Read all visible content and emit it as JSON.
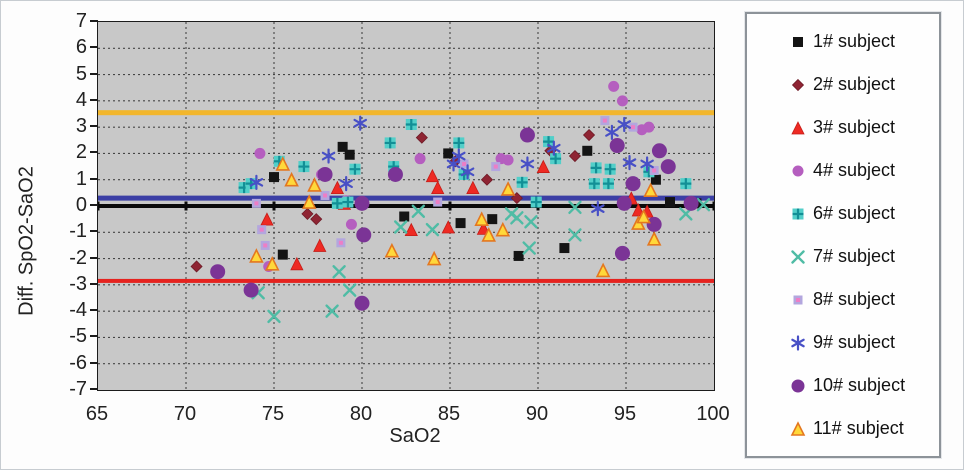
{
  "figure": {
    "background": "#fdfdfd",
    "plot_background": "#c8c8c8",
    "grid_color": "#454545",
    "border_color": "#1c1c1c"
  },
  "chart_data": {
    "type": "scatter",
    "title": "",
    "xlabel": "SaO2",
    "ylabel": "Diff. SpO2-SaO2",
    "xlim": [
      65,
      100
    ],
    "ylim": [
      -7,
      7
    ],
    "x_ticks": [
      65,
      70,
      75,
      80,
      85,
      90,
      95,
      100
    ],
    "y_ticks": [
      7,
      6,
      5,
      4,
      3,
      2,
      1,
      0,
      -1,
      -2,
      -3,
      -4,
      -5,
      -6,
      -7
    ],
    "grid": true,
    "legend_position": "right",
    "reference_lines": [
      {
        "name": "upper-limit-line",
        "y": 3.55,
        "color": "#F2B62C",
        "width": 5
      },
      {
        "name": "lower-limit-line",
        "y": -2.85,
        "color": "#E5231F",
        "width": 4
      },
      {
        "name": "zero-axis-line",
        "y": 0,
        "color": "#0a0a0a",
        "width": 4
      },
      {
        "name": "mean-bias-line",
        "y": 0.3,
        "color": "#3B3FA5",
        "width": 5
      }
    ],
    "series": [
      {
        "name": "1# subject",
        "marker": "square",
        "size": 10,
        "color": "#141414",
        "color2": "#141414",
        "points": [
          [
            75.0,
            1.1
          ],
          [
            75.5,
            -1.85
          ],
          [
            78.9,
            2.25
          ],
          [
            79.3,
            1.95
          ],
          [
            82.4,
            -0.4
          ],
          [
            84.9,
            2.0
          ],
          [
            85.6,
            -0.65
          ],
          [
            87.4,
            -0.5
          ],
          [
            88.9,
            -1.9
          ],
          [
            91.5,
            -1.6
          ],
          [
            92.8,
            2.1
          ],
          [
            96.7,
            1.0
          ],
          [
            97.5,
            0.15
          ],
          [
            99.0,
            0.1
          ]
        ]
      },
      {
        "name": "2# subject",
        "marker": "diamond",
        "size": 11,
        "color": "#8F2433",
        "color2": "#6e1b27",
        "points": [
          [
            70.6,
            -2.3
          ],
          [
            76.9,
            -0.3
          ],
          [
            77.4,
            -0.5
          ],
          [
            83.4,
            2.6
          ],
          [
            85.3,
            1.7
          ],
          [
            87.1,
            1.0
          ],
          [
            88.8,
            0.3
          ],
          [
            90.7,
            2.1
          ],
          [
            92.1,
            1.9
          ],
          [
            92.9,
            2.7
          ]
        ]
      },
      {
        "name": "3# subject",
        "marker": "triangle",
        "size": 12,
        "color": "#EE2A23",
        "color2": "#c41d18",
        "points": [
          [
            74.6,
            -0.5
          ],
          [
            76.3,
            -2.2
          ],
          [
            77.6,
            -1.5
          ],
          [
            78.6,
            0.7
          ],
          [
            79.0,
            0.1
          ],
          [
            82.8,
            -0.9
          ],
          [
            84.0,
            1.15
          ],
          [
            84.3,
            0.7
          ],
          [
            84.9,
            -0.8
          ],
          [
            86.3,
            0.7
          ],
          [
            86.9,
            -0.85
          ],
          [
            90.3,
            1.5
          ],
          [
            95.3,
            0.3
          ],
          [
            95.7,
            -0.15
          ],
          [
            96.2,
            -0.2
          ]
        ]
      },
      {
        "name": "4# subject",
        "marker": "circle",
        "size": 11,
        "color": "#B55EBF",
        "color2": "#9a4aa5",
        "points": [
          [
            74.2,
            2.0
          ],
          [
            74.7,
            -2.3
          ],
          [
            77.7,
            1.2
          ],
          [
            79.1,
            0.2
          ],
          [
            79.4,
            -0.7
          ],
          [
            83.3,
            1.8
          ],
          [
            87.9,
            1.8
          ],
          [
            88.3,
            1.75
          ],
          [
            94.3,
            4.55
          ],
          [
            94.8,
            4.0
          ],
          [
            95.9,
            2.9
          ],
          [
            96.3,
            3.0
          ]
        ]
      },
      {
        "name": "6# subject",
        "marker": "square-plus",
        "size": 11,
        "color": "#52CFC9",
        "color2": "#128F96",
        "points": [
          [
            73.3,
            0.7
          ],
          [
            73.7,
            0.85
          ],
          [
            75.3,
            1.7
          ],
          [
            76.7,
            1.5
          ],
          [
            78.6,
            0.1
          ],
          [
            79.2,
            0.15
          ],
          [
            79.6,
            1.4
          ],
          [
            81.6,
            2.4
          ],
          [
            81.8,
            1.5
          ],
          [
            82.8,
            3.1
          ],
          [
            85.5,
            2.4
          ],
          [
            85.8,
            1.2
          ],
          [
            89.1,
            0.9
          ],
          [
            89.9,
            0.15
          ],
          [
            90.6,
            2.45
          ],
          [
            91.0,
            1.8
          ],
          [
            93.2,
            0.85
          ],
          [
            93.3,
            1.45
          ],
          [
            94.0,
            0.85
          ],
          [
            94.1,
            1.4
          ],
          [
            96.3,
            1.3
          ],
          [
            98.4,
            0.85
          ]
        ]
      },
      {
        "name": "7# subject",
        "marker": "x",
        "size": 11,
        "color": "#4FBCA5",
        "color2": "#4FBCA5",
        "points": [
          [
            74.1,
            -3.3
          ],
          [
            75.0,
            -4.2
          ],
          [
            78.3,
            -4.0
          ],
          [
            78.7,
            -2.5
          ],
          [
            79.3,
            -3.2
          ],
          [
            82.2,
            -0.8
          ],
          [
            83.2,
            -0.2
          ],
          [
            84.0,
            -0.9
          ],
          [
            88.5,
            -0.3
          ],
          [
            88.8,
            -0.45
          ],
          [
            89.6,
            -0.6
          ],
          [
            89.5,
            -1.6
          ],
          [
            92.1,
            -0.05
          ],
          [
            92.1,
            -1.1
          ],
          [
            98.4,
            -0.3
          ],
          [
            99.4,
            0.05
          ]
        ]
      },
      {
        "name": "8# subject",
        "marker": "square-dot",
        "size": 9,
        "color": "#B3A6DE",
        "color2": "#ED7EC6",
        "points": [
          [
            74.0,
            0.1
          ],
          [
            74.3,
            -0.9
          ],
          [
            74.5,
            -1.5
          ],
          [
            77.9,
            0.4
          ],
          [
            78.8,
            -1.4
          ],
          [
            84.3,
            0.15
          ],
          [
            85.8,
            1.6
          ],
          [
            87.6,
            1.5
          ],
          [
            93.8,
            3.25
          ],
          [
            95.4,
            3.0
          ],
          [
            96.6,
            1.35
          ]
        ]
      },
      {
        "name": "9# subject",
        "marker": "asterisk",
        "size": 13,
        "color": "#4850C6",
        "color2": "#4850C6",
        "points": [
          [
            74.0,
            0.9
          ],
          [
            78.1,
            1.9
          ],
          [
            79.1,
            0.85
          ],
          [
            79.9,
            3.15
          ],
          [
            85.2,
            1.6
          ],
          [
            85.5,
            1.9
          ],
          [
            86.0,
            1.3
          ],
          [
            89.4,
            1.6
          ],
          [
            90.9,
            2.2
          ],
          [
            93.4,
            -0.1
          ],
          [
            94.2,
            2.8
          ],
          [
            94.9,
            3.1
          ],
          [
            95.2,
            1.65
          ],
          [
            96.2,
            1.6
          ]
        ]
      },
      {
        "name": "10# subject",
        "marker": "circle",
        "size": 15,
        "color": "#7B3496",
        "color2": "#632a79",
        "points": [
          [
            71.8,
            -2.5
          ],
          [
            73.7,
            -3.2
          ],
          [
            77.9,
            1.2
          ],
          [
            80.0,
            0.1
          ],
          [
            80.1,
            -1.1
          ],
          [
            80.0,
            -3.7
          ],
          [
            81.9,
            1.2
          ],
          [
            89.4,
            2.7
          ],
          [
            94.5,
            2.3
          ],
          [
            94.9,
            0.1
          ],
          [
            94.8,
            -1.8
          ],
          [
            95.4,
            0.85
          ],
          [
            96.6,
            -0.7
          ],
          [
            96.9,
            2.1
          ],
          [
            97.4,
            1.5
          ],
          [
            98.7,
            0.1
          ]
        ]
      },
      {
        "name": "11# subject",
        "marker": "triangle-outlined",
        "size": 12,
        "color": "#FFD83A",
        "color2": "#E4771F",
        "points": [
          [
            74.0,
            -1.9
          ],
          [
            74.9,
            -2.2
          ],
          [
            75.5,
            1.6
          ],
          [
            76.0,
            1.0
          ],
          [
            77.0,
            0.15
          ],
          [
            77.3,
            0.8
          ],
          [
            81.7,
            -1.7
          ],
          [
            84.1,
            -2.0
          ],
          [
            86.8,
            -0.5
          ],
          [
            87.2,
            -1.1
          ],
          [
            88.0,
            -0.9
          ],
          [
            88.3,
            0.65
          ],
          [
            93.7,
            -2.45
          ],
          [
            95.7,
            -0.65
          ],
          [
            96.0,
            -0.4
          ],
          [
            96.4,
            0.6
          ],
          [
            96.6,
            -1.25
          ]
        ]
      }
    ]
  }
}
